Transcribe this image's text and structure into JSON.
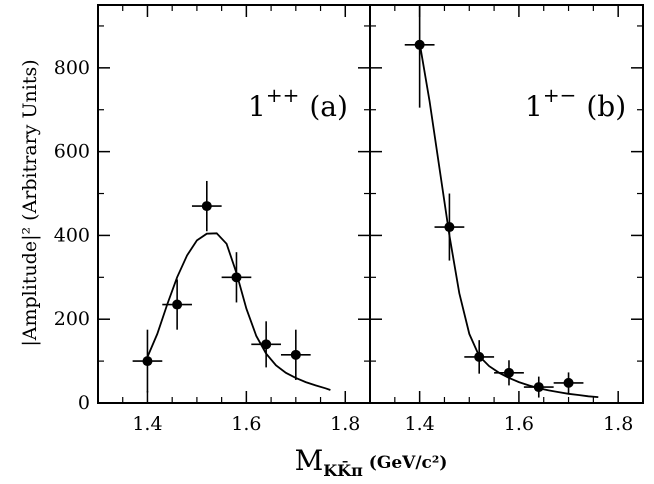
{
  "chart_data": {
    "type": "scatter",
    "y_axis_label": "|Amplitude|² (Arbitrary Units)",
    "x_axis_label": {
      "main": "M",
      "subscript": "KK̄π",
      "unit": "(GeV/c²)"
    },
    "xlim": [
      1.3,
      1.85
    ],
    "ylim": [
      0,
      950
    ],
    "x_ticks": [
      "1.4",
      "1.6",
      "1.8"
    ],
    "x_tick_values": [
      1.4,
      1.6,
      1.8
    ],
    "y_ticks": [
      "0",
      "200",
      "400",
      "600",
      "800"
    ],
    "y_tick_values": [
      0,
      200,
      400,
      600,
      800
    ],
    "panels": [
      {
        "id": "a",
        "label_state": "1",
        "label_sup": "++",
        "label_tag": "(a)",
        "points": [
          {
            "x": 1.4,
            "y": 100,
            "xerr": 0.03,
            "yerr": 75
          },
          {
            "x": 1.46,
            "y": 235,
            "xerr": 0.03,
            "yerr": 60
          },
          {
            "x": 1.52,
            "y": 470,
            "xerr": 0.03,
            "yerr": 60
          },
          {
            "x": 1.58,
            "y": 300,
            "xerr": 0.03,
            "yerr": 60
          },
          {
            "x": 1.64,
            "y": 140,
            "xerr": 0.03,
            "yerr": 55
          },
          {
            "x": 1.7,
            "y": 115,
            "xerr": 0.03,
            "yerr": 60
          }
        ],
        "fit_curve": [
          [
            1.4,
            110
          ],
          [
            1.42,
            165
          ],
          [
            1.44,
            235
          ],
          [
            1.46,
            300
          ],
          [
            1.48,
            352
          ],
          [
            1.5,
            388
          ],
          [
            1.52,
            404
          ],
          [
            1.54,
            405
          ],
          [
            1.56,
            380
          ],
          [
            1.58,
            310
          ],
          [
            1.6,
            225
          ],
          [
            1.62,
            160
          ],
          [
            1.64,
            118
          ],
          [
            1.66,
            90
          ],
          [
            1.68,
            72
          ],
          [
            1.7,
            60
          ],
          [
            1.72,
            50
          ],
          [
            1.74,
            42
          ],
          [
            1.76,
            35
          ],
          [
            1.77,
            31
          ]
        ]
      },
      {
        "id": "b",
        "label_state": "1",
        "label_sup": "+−",
        "label_tag": "(b)",
        "points": [
          {
            "x": 1.4,
            "y": 855,
            "xerr": 0.03,
            "yerr": 150
          },
          {
            "x": 1.46,
            "y": 420,
            "xerr": 0.03,
            "yerr": 80
          },
          {
            "x": 1.52,
            "y": 110,
            "xerr": 0.03,
            "yerr": 40
          },
          {
            "x": 1.58,
            "y": 72,
            "xerr": 0.03,
            "yerr": 30
          },
          {
            "x": 1.64,
            "y": 38,
            "xerr": 0.03,
            "yerr": 25
          },
          {
            "x": 1.7,
            "y": 48,
            "xerr": 0.03,
            "yerr": 25
          }
        ],
        "fit_curve": [
          [
            1.4,
            860
          ],
          [
            1.42,
            720
          ],
          [
            1.44,
            560
          ],
          [
            1.46,
            400
          ],
          [
            1.48,
            262
          ],
          [
            1.5,
            165
          ],
          [
            1.52,
            112
          ],
          [
            1.54,
            88
          ],
          [
            1.56,
            72
          ],
          [
            1.58,
            60
          ],
          [
            1.6,
            50
          ],
          [
            1.62,
            42
          ],
          [
            1.64,
            35
          ],
          [
            1.66,
            30
          ],
          [
            1.68,
            26
          ],
          [
            1.7,
            22
          ],
          [
            1.72,
            19
          ],
          [
            1.74,
            16
          ],
          [
            1.76,
            14
          ]
        ]
      }
    ]
  }
}
